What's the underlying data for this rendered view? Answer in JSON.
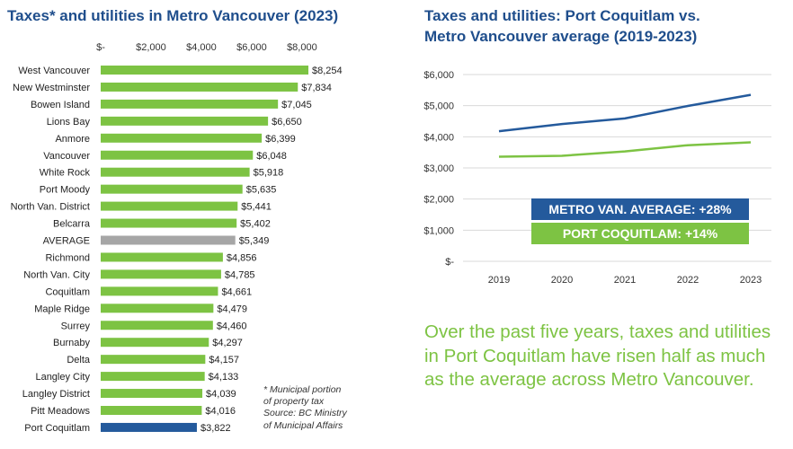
{
  "left_chart": {
    "title": "Taxes* and utilities in Metro Vancouver (2023)",
    "footnote": {
      "line1": "* Municipal portion",
      "line2": "of property tax",
      "line3": "Source: BC Ministry",
      "line4": "of Municipal Affairs"
    }
  },
  "right_chart": {
    "title_line1": "Taxes and utilities: Port Coquitlam vs.",
    "title_line2": "Metro Vancouver average (2019-2023)",
    "badge_metro": "METRO VAN. AVERAGE: +28%",
    "badge_poco": "PORT COQUITLAM: +14%"
  },
  "summary_text": "Over the past five years, taxes and utilities in Port Coquitlam have risen half as much as the average across Metro Vancouver.",
  "colors": {
    "green": "#7dc343",
    "blue": "#245a9c",
    "gray": "#a6a6a6",
    "title": "#1f4e8c"
  },
  "chart_data": [
    {
      "type": "bar",
      "orientation": "horizontal",
      "title": "Taxes* and utilities in Metro Vancouver (2023)",
      "xlim": [
        0,
        8800
      ],
      "xticks": [
        "$-",
        "$2,000",
        "$4,000",
        "$6,000",
        "$8,000"
      ],
      "xtick_values": [
        0,
        2000,
        4000,
        6000,
        8000
      ],
      "categories": [
        "West Vancouver",
        "New Westminster",
        "Bowen Island",
        "Lions Bay",
        "Anmore",
        "Vancouver",
        "White Rock",
        "Port Moody",
        "North Van. District",
        "Belcarra",
        "AVERAGE",
        "Richmond",
        "North Van. City",
        "Coquitlam",
        "Maple Ridge",
        "Surrey",
        "Burnaby",
        "Delta",
        "Langley City",
        "Langley District",
        "Pitt Meadows",
        "Port Coquitlam"
      ],
      "values": [
        8254,
        7834,
        7045,
        6650,
        6399,
        6048,
        5918,
        5635,
        5441,
        5402,
        5349,
        4856,
        4785,
        4661,
        4479,
        4460,
        4297,
        4157,
        4133,
        4039,
        4016,
        3822
      ],
      "labels": [
        "$8,254",
        "$7,834",
        "$7,045",
        "$6,650",
        "$6,399",
        "$6,048",
        "$5,918",
        "$5,635",
        "$5,441",
        "$5,402",
        "$5,349",
        "$4,856",
        "$4,785",
        "$4,661",
        "$4,479",
        "$4,460",
        "$4,297",
        "$4,157",
        "$4,133",
        "$4,039",
        "$4,016",
        "$3,822"
      ],
      "highlight": {
        "AVERAGE": "gray",
        "Port Coquitlam": "blue"
      }
    },
    {
      "type": "line",
      "title": "Taxes and utilities: Port Coquitlam vs. Metro Vancouver average (2019-2023)",
      "x": [
        "2019",
        "2020",
        "2021",
        "2022",
        "2023"
      ],
      "ylim": [
        0,
        6000
      ],
      "yticks": [
        "$-",
        "$1,000",
        "$2,000",
        "$3,000",
        "$4,000",
        "$5,000",
        "$6,000"
      ],
      "ytick_values": [
        0,
        1000,
        2000,
        3000,
        4000,
        5000,
        6000
      ],
      "series": [
        {
          "name": "Metro Vancouver average",
          "color": "blue",
          "values": [
            4180,
            4410,
            4590,
            4990,
            5349
          ]
        },
        {
          "name": "Port Coquitlam",
          "color": "green",
          "values": [
            3360,
            3390,
            3530,
            3730,
            3822
          ]
        }
      ]
    }
  ]
}
